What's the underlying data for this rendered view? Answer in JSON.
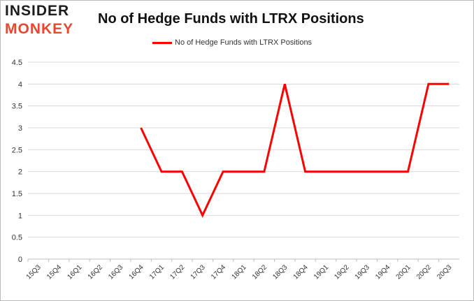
{
  "header": {
    "logo_line1": "INSIDER",
    "logo_line2": "MONKEY",
    "title": "No of Hedge Funds with LTRX Positions"
  },
  "legend": {
    "label": "No of Hedge Funds with LTRX Positions"
  },
  "colors": {
    "series": "#ff0000",
    "grid": "#d9d9d9",
    "logo_dark": "#1c1c1c",
    "logo_accent": "#e6492d"
  },
  "chart_data": {
    "type": "line",
    "title": "No of Hedge Funds with LTRX Positions",
    "xlabel": "",
    "ylabel": "",
    "legend_position": "top-center",
    "grid": true,
    "ylim": [
      0,
      4.5
    ],
    "yticks": [
      0,
      0.5,
      1,
      1.5,
      2,
      2.5,
      3,
      3.5,
      4,
      4.5
    ],
    "categories": [
      "15Q3",
      "15Q4",
      "16Q1",
      "16Q2",
      "16Q3",
      "16Q4",
      "17Q1",
      "17Q2",
      "17Q3",
      "17Q4",
      "18Q1",
      "18Q2",
      "18Q3",
      "18Q4",
      "19Q1",
      "19Q2",
      "19Q3",
      "19Q4",
      "20Q1",
      "20Q2",
      "20Q3"
    ],
    "series": [
      {
        "name": "No of Hedge Funds with LTRX Positions",
        "values": [
          null,
          null,
          null,
          null,
          null,
          3,
          2,
          2,
          1,
          2,
          2,
          2,
          4,
          2,
          2,
          2,
          2,
          2,
          2,
          4,
          4
        ]
      }
    ]
  }
}
